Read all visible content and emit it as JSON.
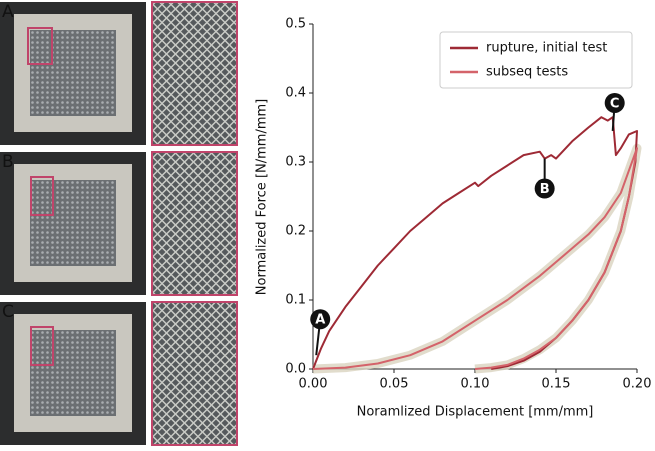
{
  "figure": {
    "panel_labels": [
      "A",
      "B",
      "C"
    ]
  },
  "chart_data": {
    "type": "line",
    "xlabel": "Noramlized Displacement [mm/mm]",
    "ylabel": "Normalized Force [N/mm/mm]",
    "xlim": [
      0,
      0.2
    ],
    "ylim": [
      0,
      0.5
    ],
    "xticks": [
      {
        "value": 0,
        "label": "0.00"
      },
      0.05,
      {
        "value": 0.1,
        "label": "0.10"
      },
      0.15,
      {
        "value": 0.2,
        "label": "0.20"
      }
    ],
    "yticks": [
      {
        "value": 0,
        "label": "0.0"
      },
      0.1,
      0.2,
      0.3,
      0.4,
      0.5
    ],
    "legend": "upper right",
    "series": [
      {
        "name": "rupture, initial test",
        "color": "#9e2a35",
        "x": [
          0,
          0.005,
          0.01,
          0.02,
          0.03,
          0.04,
          0.05,
          0.06,
          0.07,
          0.08,
          0.09,
          0.1,
          0.102,
          0.11,
          0.12,
          0.13,
          0.14,
          0.143,
          0.147,
          0.15,
          0.16,
          0.17,
          0.178,
          0.182,
          0.185,
          0.187,
          0.19,
          0.195,
          0.2,
          0.199,
          0.195,
          0.19,
          0.18,
          0.17,
          0.16,
          0.15,
          0.14,
          0.13,
          0.12,
          0.11
        ],
        "values": [
          0,
          0.03,
          0.055,
          0.09,
          0.12,
          0.15,
          0.175,
          0.2,
          0.22,
          0.24,
          0.255,
          0.27,
          0.265,
          0.28,
          0.295,
          0.31,
          0.315,
          0.305,
          0.31,
          0.305,
          0.33,
          0.35,
          0.365,
          0.36,
          0.365,
          0.31,
          0.32,
          0.34,
          0.345,
          0.3,
          0.25,
          0.2,
          0.14,
          0.1,
          0.07,
          0.045,
          0.025,
          0.012,
          0.004,
          0
        ]
      },
      {
        "name": "subseq tests",
        "color": "#d4636a",
        "band_color": "#d9d3bf",
        "x": [
          0,
          0.02,
          0.04,
          0.06,
          0.08,
          0.1,
          0.12,
          0.14,
          0.16,
          0.17,
          0.18,
          0.19,
          0.2,
          0.195,
          0.19,
          0.18,
          0.17,
          0.16,
          0.15,
          0.14,
          0.13,
          0.12,
          0.11,
          0.1
        ],
        "values": [
          0,
          0.002,
          0.008,
          0.02,
          0.04,
          0.07,
          0.1,
          0.135,
          0.175,
          0.195,
          0.22,
          0.255,
          0.32,
          0.25,
          0.2,
          0.14,
          0.1,
          0.07,
          0.045,
          0.028,
          0.015,
          0.006,
          0.002,
          0
        ]
      }
    ],
    "annotations": [
      {
        "text": "A",
        "x": 0.002,
        "y": 0.02
      },
      {
        "text": "B",
        "x": 0.143,
        "y": 0.305
      },
      {
        "text": "C",
        "x": 0.185,
        "y": 0.345
      }
    ]
  }
}
